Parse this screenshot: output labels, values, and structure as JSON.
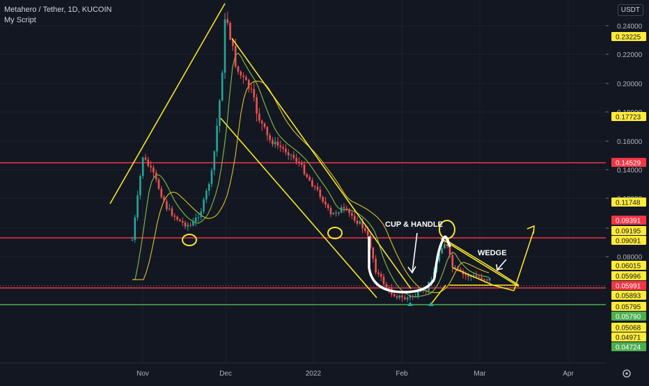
{
  "header": {
    "title": "Metahero / Tether, 1D, KUCOIN",
    "script": "My Script",
    "unit": "USDT"
  },
  "colors": {
    "background": "#131722",
    "grid": "#1e222d",
    "up": "#26a69a",
    "down": "#ef5350",
    "drawing": "#f5e72a",
    "hline_red": "#f23645",
    "hline_green": "#4caf50",
    "white": "#ffffff",
    "ma_fast": "#7cb342",
    "ma_slow": "#c9b926"
  },
  "chart_data": {
    "type": "candlestick",
    "x_ticks": [
      "Nov",
      "Dec",
      "2022",
      "Feb",
      "Mar",
      "Apr"
    ],
    "y_ticks": [
      "0.24000",
      "0.22000",
      "0.20000",
      "0.18000",
      "0.16000",
      "0.14000",
      "0.12000",
      "0.10000",
      "0.08000"
    ],
    "ylim": [
      0.04,
      0.25
    ],
    "grid": true,
    "price_labels": [
      {
        "value": 0.23225,
        "text": "0.23225",
        "style": "yellow"
      },
      {
        "value": 0.17723,
        "text": "0.17723",
        "style": "yellow"
      },
      {
        "value": 0.14529,
        "text": "0.14529",
        "style": "red"
      },
      {
        "value": 0.11748,
        "text": "0.11748",
        "style": "yellow"
      },
      {
        "value": 0.09391,
        "text": "0.09391",
        "style": "red"
      },
      {
        "value": 0.09195,
        "text": "0.09195",
        "style": "yellow"
      },
      {
        "value": 0.09091,
        "text": "0.09091",
        "style": "yellow"
      },
      {
        "value": 0.06015,
        "text": "0.06015",
        "style": "yellow"
      },
      {
        "value": 0.05996,
        "text": "0.05996",
        "style": "yellow"
      },
      {
        "value": 0.05991,
        "text": "0.05991",
        "style": "red"
      },
      {
        "value": 0.05893,
        "text": "0.05893",
        "style": "yellow"
      },
      {
        "value": 0.05795,
        "text": "0.05795",
        "style": "yellow"
      },
      {
        "value": 0.0579,
        "text": "0.05790",
        "style": "green"
      },
      {
        "value": 0.05068,
        "text": "0.05068",
        "style": "yellow"
      },
      {
        "value": 0.04971,
        "text": "0.04971",
        "style": "yellow"
      },
      {
        "value": 0.04724,
        "text": "0.04724",
        "style": "green"
      }
    ],
    "horizontal_lines": [
      {
        "value": 0.14529,
        "color": "red"
      },
      {
        "value": 0.0905,
        "color": "red"
      },
      {
        "value": 0.0598,
        "color": "red"
      },
      {
        "value": 0.0552,
        "color": "green"
      }
    ],
    "annotations": [
      {
        "text": "CUP & HANDLE"
      },
      {
        "text": "WEDGE"
      }
    ]
  }
}
